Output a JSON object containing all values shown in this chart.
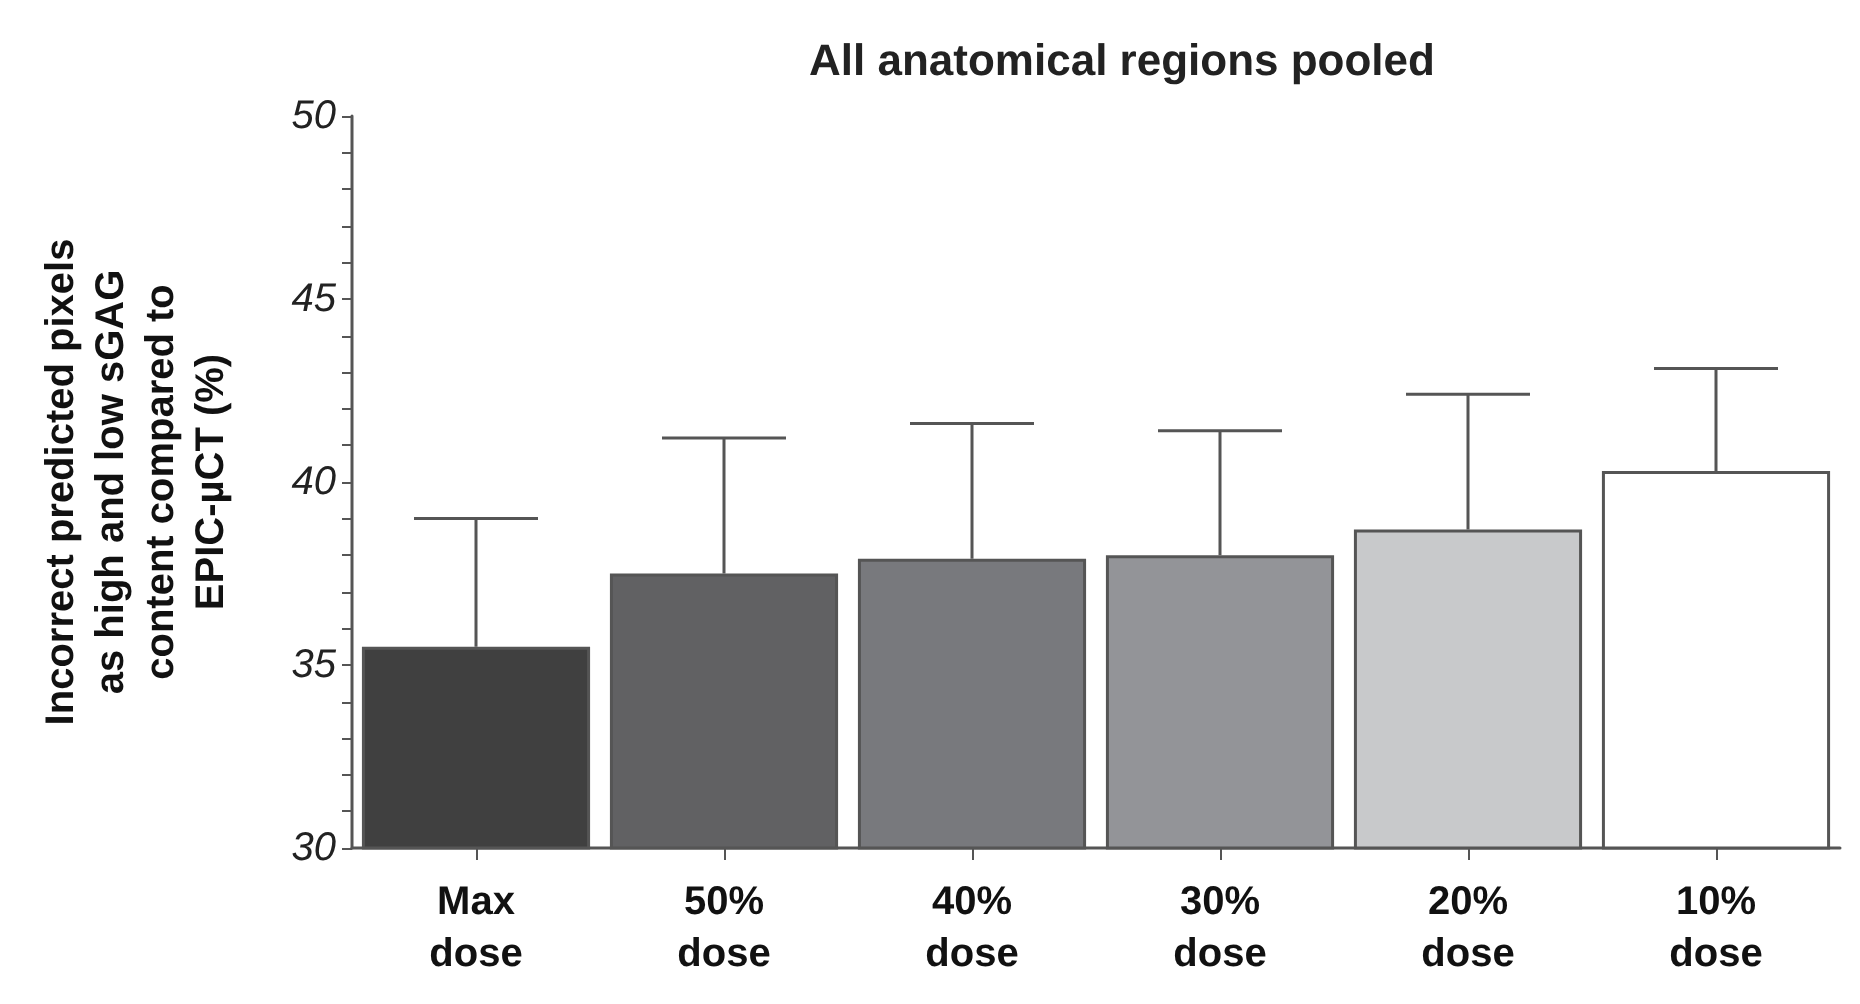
{
  "chart_data": {
    "type": "bar",
    "title": "All anatomical regions pooled",
    "ylabel": "Incorrect predicted pixels\nas high and low sGAG\ncontent compared to\nEPIC-µCT (%)",
    "categories": [
      "Max dose",
      "50% dose",
      "40% dose",
      "30% dose",
      "20% dose",
      "10% dose"
    ],
    "values": [
      35.5,
      37.5,
      37.9,
      38.0,
      38.7,
      40.3
    ],
    "colors": [
      "#404040",
      "#616163",
      "#78797d",
      "#939498",
      "#c8c9cb",
      "#ffffff"
    ],
    "errors": [
      [
        35.5,
        39.0
      ],
      [
        37.5,
        41.2
      ],
      [
        37.9,
        41.6
      ],
      [
        38.0,
        41.4
      ],
      [
        38.7,
        42.4
      ],
      [
        40.3,
        43.1
      ]
    ],
    "ylim": [
      30,
      50
    ],
    "yticks": [
      30,
      {
        "value": 31,
        "label": null
      },
      {
        "value": 32,
        "label": null
      },
      {
        "value": 33,
        "label": null
      },
      {
        "value": 34,
        "label": null
      },
      35,
      {
        "value": 36,
        "label": null
      },
      {
        "value": 37,
        "label": null
      },
      {
        "value": 38,
        "label": null
      },
      {
        "value": 39,
        "label": null
      },
      40,
      {
        "value": 41,
        "label": null
      },
      {
        "value": 42,
        "label": null
      },
      {
        "value": 43,
        "label": null
      },
      {
        "value": 44,
        "label": null
      },
      45,
      {
        "value": 46,
        "label": null
      },
      {
        "value": 47,
        "label": null
      },
      {
        "value": 48,
        "label": null
      },
      {
        "value": 49,
        "label": null
      },
      50
    ],
    "grid": false
  }
}
